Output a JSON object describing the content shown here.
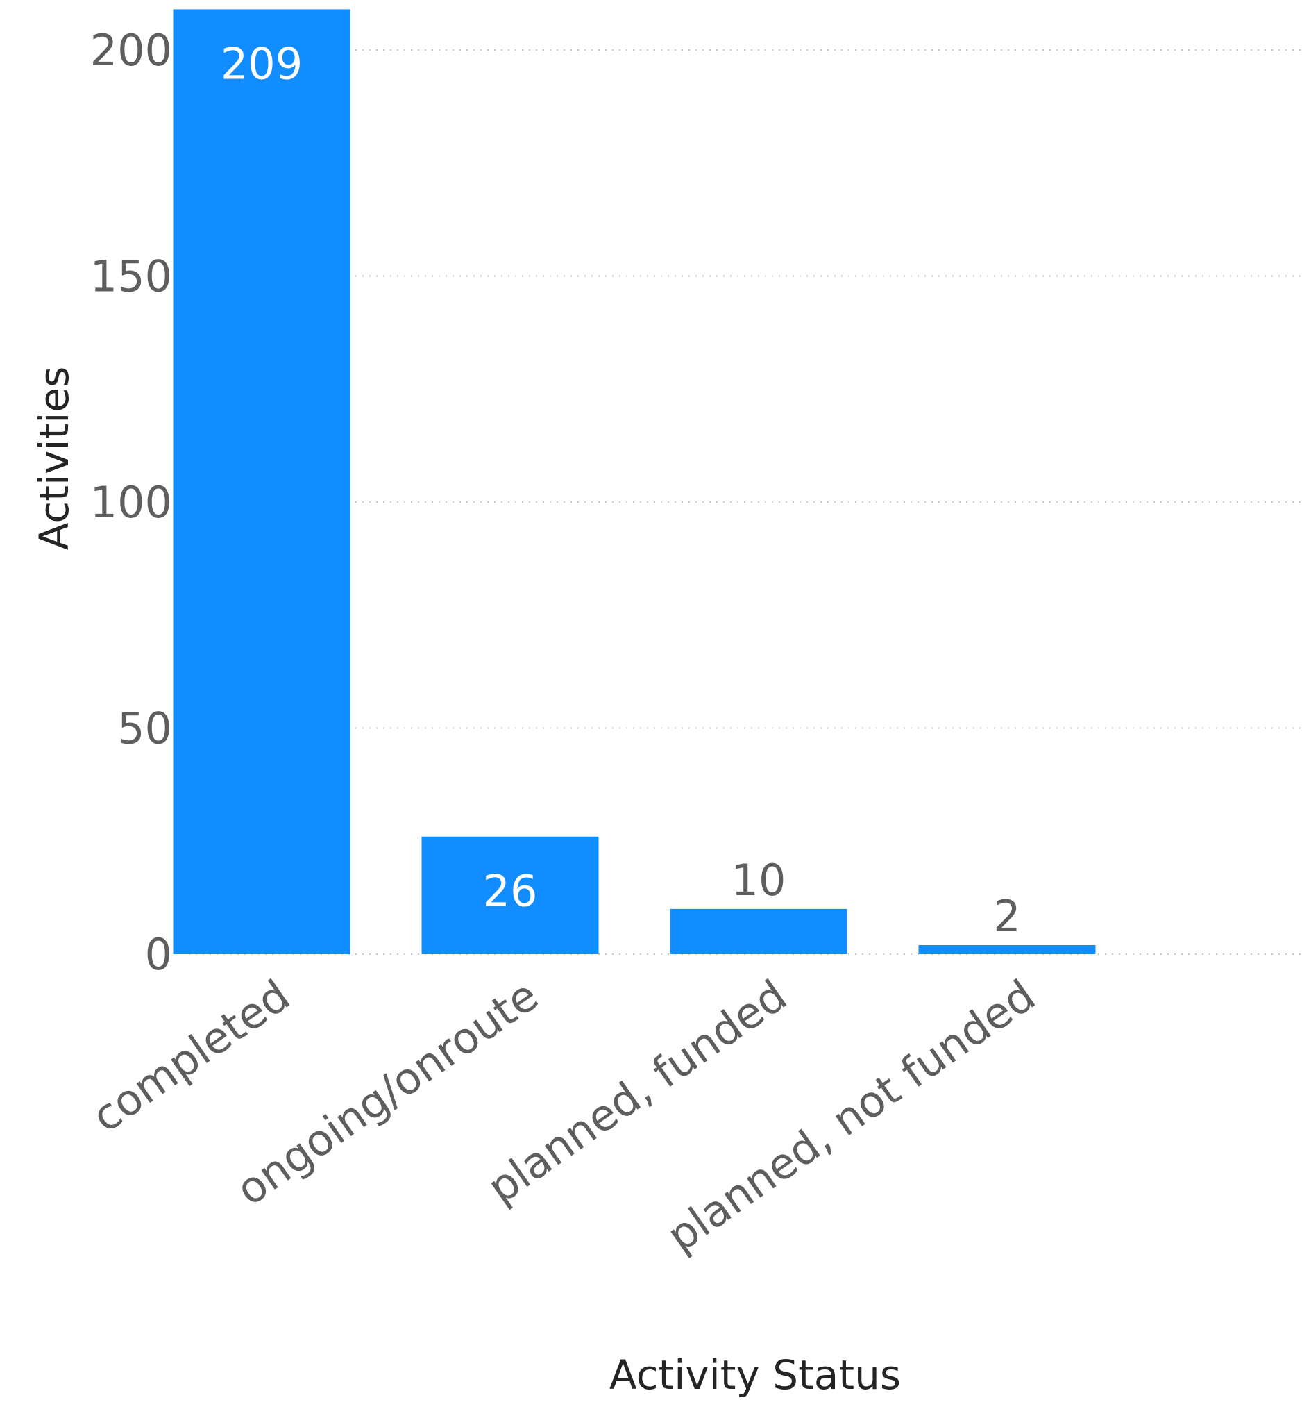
{
  "chart_data": {
    "type": "bar",
    "categories": [
      "completed",
      "ongoing/onroute",
      "planned, funded",
      "planned, not funded"
    ],
    "values": [
      209,
      26,
      10,
      2
    ],
    "data_labels": [
      "209",
      "26",
      "10",
      "2"
    ],
    "xlabel": "Activity Status",
    "ylabel": "Activities",
    "ylim": [
      0,
      209
    ],
    "yticks": [
      0,
      50,
      100,
      150,
      200
    ],
    "ytick_labels": [
      "0",
      "50",
      "100",
      "150",
      "200"
    ],
    "grid": true,
    "legend": "none",
    "colors": {
      "bar": "#118dff",
      "tick_text": "#605e5c",
      "axis_title": "#252423",
      "gridline": "#c8c6c4",
      "label_inside": "#ffffff"
    }
  }
}
